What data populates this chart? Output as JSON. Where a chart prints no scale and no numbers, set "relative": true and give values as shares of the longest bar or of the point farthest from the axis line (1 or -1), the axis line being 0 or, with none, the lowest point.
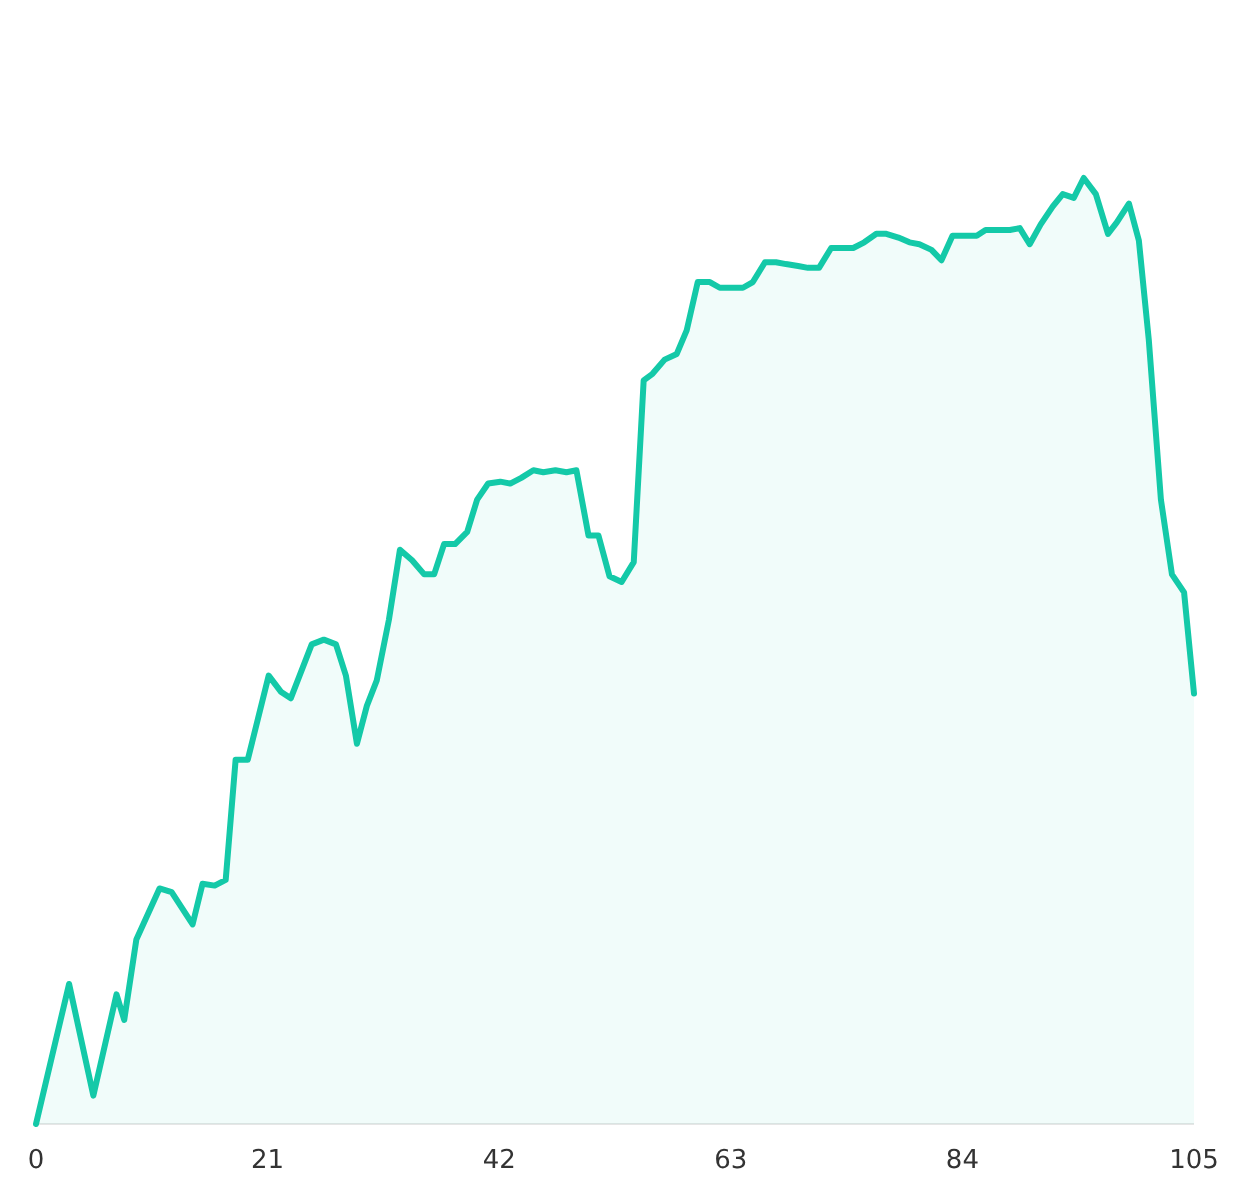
{
  "chart_data": {
    "type": "area",
    "relative": true,
    "xlim": [
      0,
      105
    ],
    "xticks": [
      0,
      21,
      42,
      63,
      84,
      105
    ],
    "series": [
      {
        "color": "#14c9a8",
        "x": [
          0,
          3,
          5.2,
          7.3,
          8,
          9.1,
          11.2,
          12.3,
          14.2,
          15.1,
          16.2,
          17.2,
          18.1,
          19.2,
          21.1,
          22.2,
          23.1,
          25,
          26.1,
          27.2,
          28.1,
          29.1,
          30,
          30.9,
          32,
          33,
          34.1,
          35.2,
          36.1,
          37,
          38,
          39.1,
          40,
          41,
          42.1,
          43,
          44,
          45.1,
          46,
          47.1,
          48.1,
          49,
          50.1,
          51,
          52,
          53.1,
          54.2,
          55.1,
          55.9,
          57,
          58.1,
          59,
          60,
          61.1,
          62,
          63.1,
          64.1,
          65,
          66.1,
          67.1,
          68,
          69.1,
          70,
          71,
          72.1,
          73.2,
          74.1,
          75.1,
          76.2,
          77.1,
          78.2,
          79.2,
          80.1,
          81.2,
          82.1,
          83.1,
          84.2,
          85.3,
          86.1,
          87.2,
          88.3,
          89.2,
          90.1,
          91.1,
          92.2,
          93.1,
          94.1,
          95,
          96.1,
          97.2,
          98,
          99.1,
          100,
          100.9,
          102,
          103,
          104.1,
          105
        ],
        "values": [
          0,
          0.148,
          0.03,
          0.137,
          0.11,
          0.195,
          0.249,
          0.245,
          0.211,
          0.254,
          0.252,
          0.258,
          0.385,
          0.385,
          0.474,
          0.457,
          0.45,
          0.507,
          0.512,
          0.507,
          0.474,
          0.402,
          0.442,
          0.469,
          0.533,
          0.607,
          0.596,
          0.581,
          0.581,
          0.613,
          0.613,
          0.626,
          0.66,
          0.677,
          0.679,
          0.677,
          0.683,
          0.691,
          0.689,
          0.691,
          0.689,
          0.691,
          0.622,
          0.622,
          0.579,
          0.573,
          0.594,
          0.786,
          0.793,
          0.808,
          0.814,
          0.839,
          0.89,
          0.89,
          0.884,
          0.884,
          0.884,
          0.89,
          0.911,
          0.911,
          0.909,
          0.907,
          0.905,
          0.905,
          0.926,
          0.926,
          0.926,
          0.932,
          0.941,
          0.941,
          0.937,
          0.932,
          0.93,
          0.924,
          0.913,
          0.939,
          0.939,
          0.939,
          0.945,
          0.945,
          0.945,
          0.947,
          0.93,
          0.951,
          0.97,
          0.983,
          0.979,
          1,
          0.983,
          0.941,
          0.953,
          0.973,
          0.934,
          0.829,
          0.66,
          0.581,
          0.562,
          0.455
        ]
      }
    ]
  }
}
